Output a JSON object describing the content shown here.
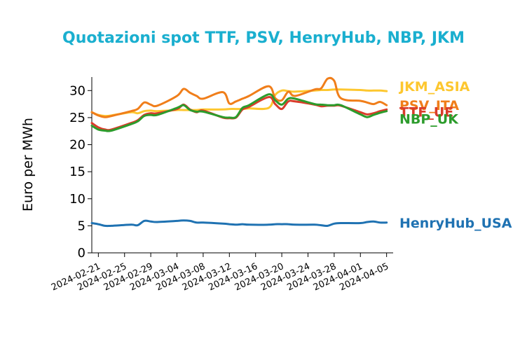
{
  "chart_data": {
    "type": "line",
    "title": "Quotazioni spot TTF, PSV, HenryHub, NBP, JKM",
    "title_color": "#1aafcf",
    "xlabel": "",
    "ylabel": "Euro per MWh",
    "ylim": [
      0,
      32.5
    ],
    "yticks": [
      "0",
      "5",
      "10",
      "15",
      "20",
      "25",
      "30"
    ],
    "xlim": [
      "2024-02-20",
      "2024-04-06"
    ],
    "xticks": [
      "2024-02-21",
      "2024-02-25",
      "2024-02-29",
      "2024-03-04",
      "2024-03-08",
      "2024-03-12",
      "2024-03-16",
      "2024-03-20",
      "2024-03-24",
      "2024-03-28",
      "2024-04-01",
      "2024-04-05"
    ],
    "grid": false,
    "legend": "right-end labels",
    "dates": [
      "2024-02-20",
      "2024-02-21",
      "2024-02-22",
      "2024-02-23",
      "2024-02-26",
      "2024-02-27",
      "2024-02-28",
      "2024-02-29",
      "2024-03-01",
      "2024-03-04",
      "2024-03-05",
      "2024-03-06",
      "2024-03-07",
      "2024-03-08",
      "2024-03-11",
      "2024-03-12",
      "2024-03-13",
      "2024-03-14",
      "2024-03-15",
      "2024-03-18",
      "2024-03-19",
      "2024-03-20",
      "2024-03-21",
      "2024-03-22",
      "2024-03-25",
      "2024-03-26",
      "2024-03-27",
      "2024-03-28",
      "2024-03-29",
      "2024-04-01",
      "2024-04-02",
      "2024-04-03",
      "2024-04-04",
      "2024-04-05"
    ],
    "series": [
      {
        "name": "JKM_ASIA",
        "color": "#fdc72f",
        "values": [
          26.0,
          25.5,
          25.3,
          25.4,
          26.0,
          25.8,
          26.2,
          26.3,
          26.2,
          26.4,
          26.4,
          26.4,
          26.4,
          26.5,
          26.5,
          26.6,
          26.6,
          26.6,
          26.7,
          26.8,
          29.2,
          30.0,
          29.9,
          29.8,
          30.0,
          30.1,
          30.1,
          30.2,
          30.2,
          30.1,
          30.0,
          30.0,
          30.0,
          29.9
        ]
      },
      {
        "name": "PSV_ITA",
        "color": "#f07e1a",
        "values": [
          26.0,
          25.4,
          25.1,
          25.3,
          26.2,
          26.6,
          27.8,
          27.4,
          27.2,
          29.0,
          30.3,
          29.6,
          29.0,
          28.5,
          29.7,
          27.6,
          28.0,
          28.5,
          29.0,
          30.8,
          28.6,
          28.2,
          29.8,
          29.0,
          30.2,
          30.4,
          32.2,
          31.8,
          28.6,
          28.1,
          27.8,
          27.5,
          27.9,
          27.3
        ]
      },
      {
        "name": "TTF_UE",
        "color": "#d93c2b",
        "values": [
          24.0,
          23.2,
          22.8,
          22.8,
          24.0,
          24.5,
          25.5,
          25.8,
          25.8,
          26.6,
          27.4,
          26.5,
          26.0,
          26.3,
          25.0,
          24.9,
          25.0,
          26.5,
          27.0,
          28.8,
          27.5,
          26.6,
          28.0,
          28.0,
          27.4,
          27.1,
          27.2,
          27.2,
          27.2,
          26.0,
          25.6,
          25.8,
          26.2,
          26.5
        ]
      },
      {
        "name": "NBP_UK",
        "color": "#2c9c2c",
        "values": [
          23.5,
          22.8,
          22.6,
          22.6,
          23.8,
          24.3,
          25.3,
          25.5,
          25.5,
          26.8,
          27.3,
          26.4,
          26.1,
          26.1,
          25.1,
          25.0,
          25.1,
          26.8,
          27.3,
          29.3,
          28.2,
          27.4,
          28.5,
          28.5,
          27.5,
          27.4,
          27.3,
          27.3,
          27.3,
          25.6,
          25.1,
          25.5,
          25.9,
          26.2
        ]
      },
      {
        "name": "HenryHub_USA",
        "color": "#1f72b2",
        "values": [
          5.5,
          5.3,
          5.0,
          5.0,
          5.2,
          5.1,
          5.9,
          5.8,
          5.7,
          5.9,
          6.0,
          5.9,
          5.6,
          5.6,
          5.4,
          5.3,
          5.2,
          5.3,
          5.2,
          5.2,
          5.3,
          5.3,
          5.3,
          5.2,
          5.2,
          5.1,
          5.0,
          5.4,
          5.5,
          5.5,
          5.7,
          5.8,
          5.6,
          5.6
        ]
      }
    ]
  }
}
